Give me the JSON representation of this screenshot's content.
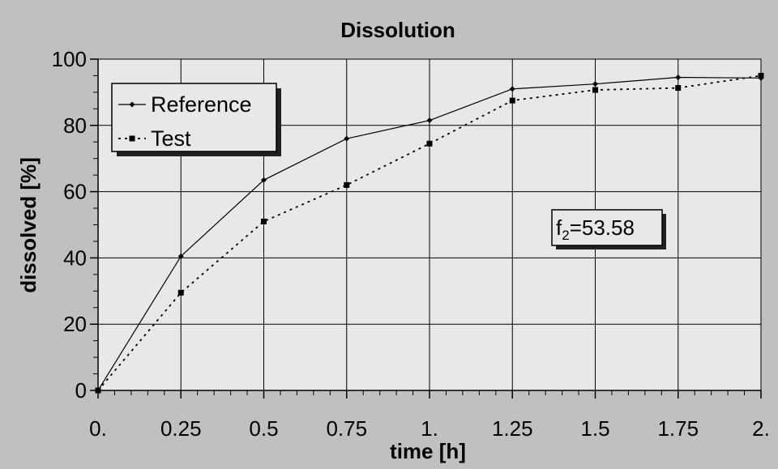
{
  "chart_data": {
    "type": "line",
    "title": "Dissolution",
    "xlabel": "time [h]",
    "ylabel": "dissolved [%]",
    "xlim": [
      0,
      2
    ],
    "ylim": [
      0,
      100
    ],
    "x_ticks": [
      0,
      0.25,
      0.5,
      0.75,
      1,
      1.25,
      1.5,
      1.75,
      2
    ],
    "x_tick_labels": [
      "0.",
      "0.25",
      "0.5",
      "0.75",
      "1.",
      "1.25",
      "1.5",
      "1.75",
      "2."
    ],
    "y_ticks": [
      0,
      20,
      40,
      60,
      80,
      100
    ],
    "y_tick_labels": [
      "0",
      "20",
      "40",
      "60",
      "80",
      "100"
    ],
    "grid": true,
    "legend_position": "top-left",
    "x": [
      0,
      0.25,
      0.5,
      0.75,
      1,
      1.25,
      1.5,
      1.75,
      2
    ],
    "series": [
      {
        "name": "Reference",
        "values": [
          0,
          40.5,
          63.5,
          76,
          81.5,
          91,
          92.5,
          94.5,
          94.3
        ],
        "marker": "diamond",
        "line": "solid",
        "color": "#000000"
      },
      {
        "name": "Test",
        "values": [
          0,
          29.5,
          51,
          62,
          74.5,
          87.5,
          90.7,
          91.3,
          95
        ],
        "marker": "square",
        "line": "dotted",
        "color": "#000000"
      }
    ],
    "annotation": {
      "base": "f",
      "sub": "2",
      "rest": "=53.58"
    }
  },
  "colors": {
    "background": "#c0c0c0",
    "plot_area": "#e8e8e8",
    "grid": "#000000",
    "line": "#000000"
  }
}
